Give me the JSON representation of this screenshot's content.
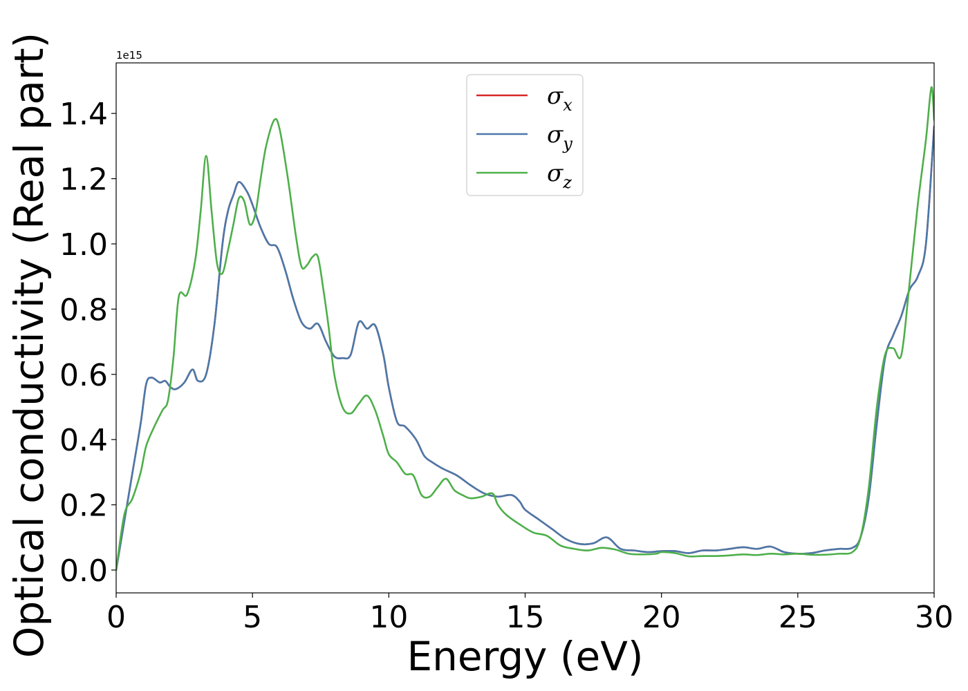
{
  "chart_data": {
    "type": "line",
    "xlabel": "Energy (eV)",
    "ylabel": "Optical conductivity (Real part)",
    "y_offset_text": "1e15",
    "xlim": [
      0,
      30
    ],
    "ylim": [
      -0.07,
      1.555
    ],
    "x_ticks": [
      0,
      5,
      10,
      15,
      20,
      25,
      30
    ],
    "x_tick_labels": [
      "0",
      "5",
      "10",
      "15",
      "20",
      "25",
      "30"
    ],
    "y_ticks": [
      0.0,
      0.2,
      0.4,
      0.6,
      0.8,
      1.0,
      1.2,
      1.4
    ],
    "y_tick_labels": [
      "0.0",
      "0.2",
      "0.4",
      "0.6",
      "0.8",
      "1.0",
      "1.2",
      "1.4"
    ],
    "grid": false,
    "legend_position": "upper center",
    "series": [
      {
        "name": "σx",
        "legend_base": "σ",
        "legend_sub": "x",
        "color": "#d62728",
        "x": [
          0,
          0.3,
          0.6,
          0.9,
          1.1,
          1.3,
          1.6,
          1.8,
          2.0,
          2.2,
          2.5,
          2.8,
          3.0,
          3.3,
          3.6,
          3.9,
          4.1,
          4.3,
          4.5,
          4.8,
          5.0,
          5.3,
          5.6,
          5.9,
          6.2,
          6.5,
          6.8,
          7.1,
          7.4,
          7.7,
          8.0,
          8.3,
          8.6,
          8.9,
          9.2,
          9.5,
          9.8,
          10.0,
          10.3,
          10.6,
          11.0,
          11.3,
          11.6,
          12.0,
          12.5,
          13.0,
          13.5,
          14.0,
          14.5,
          14.8,
          15.0,
          15.5,
          16.0,
          16.5,
          17.0,
          17.5,
          18.0,
          18.5,
          19.0,
          19.5,
          20.0,
          20.5,
          21.0,
          21.5,
          22.0,
          22.5,
          23.0,
          23.5,
          24.0,
          24.5,
          25.0,
          25.5,
          26.0,
          26.5,
          27.0,
          27.3,
          27.6,
          27.9,
          28.2,
          28.5,
          28.8,
          29.1,
          29.4,
          29.7,
          30.0
        ],
        "y": [
          0.0,
          0.15,
          0.3,
          0.45,
          0.57,
          0.59,
          0.575,
          0.58,
          0.56,
          0.555,
          0.575,
          0.615,
          0.58,
          0.6,
          0.75,
          1.0,
          1.1,
          1.15,
          1.19,
          1.16,
          1.12,
          1.05,
          1.0,
          0.99,
          0.92,
          0.83,
          0.76,
          0.74,
          0.755,
          0.7,
          0.655,
          0.65,
          0.66,
          0.76,
          0.74,
          0.75,
          0.66,
          0.56,
          0.455,
          0.44,
          0.4,
          0.35,
          0.33,
          0.31,
          0.29,
          0.26,
          0.235,
          0.225,
          0.23,
          0.21,
          0.185,
          0.155,
          0.125,
          0.095,
          0.08,
          0.082,
          0.1,
          0.065,
          0.06,
          0.055,
          0.058,
          0.058,
          0.052,
          0.06,
          0.06,
          0.065,
          0.07,
          0.065,
          0.072,
          0.055,
          0.05,
          0.052,
          0.06,
          0.065,
          0.068,
          0.1,
          0.22,
          0.45,
          0.65,
          0.72,
          0.78,
          0.86,
          0.9,
          1.0,
          1.36
        ]
      },
      {
        "name": "σy",
        "legend_base": "σ",
        "legend_sub": "y",
        "color": "#4a79aa",
        "x": [
          0,
          0.3,
          0.6,
          0.9,
          1.1,
          1.3,
          1.6,
          1.8,
          2.0,
          2.2,
          2.5,
          2.8,
          3.0,
          3.3,
          3.6,
          3.9,
          4.1,
          4.3,
          4.5,
          4.8,
          5.0,
          5.3,
          5.6,
          5.9,
          6.2,
          6.5,
          6.8,
          7.1,
          7.4,
          7.7,
          8.0,
          8.3,
          8.6,
          8.9,
          9.2,
          9.5,
          9.8,
          10.0,
          10.3,
          10.6,
          11.0,
          11.3,
          11.6,
          12.0,
          12.5,
          13.0,
          13.5,
          14.0,
          14.5,
          14.8,
          15.0,
          15.5,
          16.0,
          16.5,
          17.0,
          17.5,
          18.0,
          18.5,
          19.0,
          19.5,
          20.0,
          20.5,
          21.0,
          21.5,
          22.0,
          22.5,
          23.0,
          23.5,
          24.0,
          24.5,
          25.0,
          25.5,
          26.0,
          26.5,
          27.0,
          27.3,
          27.6,
          27.9,
          28.2,
          28.5,
          28.8,
          29.1,
          29.4,
          29.7,
          30.0
        ],
        "y": [
          0.0,
          0.15,
          0.3,
          0.45,
          0.57,
          0.59,
          0.575,
          0.58,
          0.56,
          0.555,
          0.575,
          0.615,
          0.58,
          0.6,
          0.75,
          1.0,
          1.1,
          1.15,
          1.19,
          1.16,
          1.12,
          1.05,
          1.0,
          0.99,
          0.92,
          0.83,
          0.76,
          0.74,
          0.755,
          0.7,
          0.655,
          0.65,
          0.66,
          0.76,
          0.74,
          0.75,
          0.66,
          0.56,
          0.455,
          0.44,
          0.4,
          0.35,
          0.33,
          0.31,
          0.29,
          0.26,
          0.235,
          0.225,
          0.23,
          0.21,
          0.185,
          0.155,
          0.125,
          0.095,
          0.08,
          0.082,
          0.1,
          0.065,
          0.06,
          0.055,
          0.058,
          0.058,
          0.052,
          0.06,
          0.06,
          0.065,
          0.07,
          0.065,
          0.072,
          0.055,
          0.05,
          0.052,
          0.06,
          0.065,
          0.068,
          0.1,
          0.22,
          0.45,
          0.65,
          0.72,
          0.78,
          0.86,
          0.9,
          1.0,
          1.36
        ]
      },
      {
        "name": "σz",
        "legend_base": "σ",
        "legend_sub": "z",
        "color": "#4daf4a",
        "x": [
          0,
          0.3,
          0.6,
          0.9,
          1.1,
          1.4,
          1.7,
          1.9,
          2.1,
          2.3,
          2.6,
          2.9,
          3.1,
          3.3,
          3.5,
          3.7,
          3.9,
          4.1,
          4.3,
          4.5,
          4.7,
          4.9,
          5.1,
          5.3,
          5.5,
          5.8,
          6.0,
          6.3,
          6.6,
          6.8,
          7.0,
          7.2,
          7.4,
          7.6,
          7.8,
          8.0,
          8.3,
          8.6,
          8.9,
          9.2,
          9.5,
          9.8,
          10.0,
          10.3,
          10.6,
          10.9,
          11.2,
          11.5,
          11.8,
          12.1,
          12.4,
          12.7,
          13.0,
          13.4,
          13.8,
          14.0,
          14.3,
          14.8,
          15.3,
          15.8,
          16.3,
          16.8,
          17.3,
          17.8,
          18.3,
          18.8,
          19.3,
          19.8,
          20.0,
          20.5,
          21.0,
          21.5,
          22.0,
          22.5,
          23.0,
          23.5,
          24.0,
          24.5,
          25.0,
          25.5,
          26.0,
          26.5,
          27.0,
          27.3,
          27.6,
          27.9,
          28.2,
          28.5,
          28.8,
          29.1,
          29.4,
          29.7,
          29.9,
          30.0
        ],
        "y": [
          0.0,
          0.17,
          0.22,
          0.3,
          0.38,
          0.44,
          0.49,
          0.52,
          0.65,
          0.84,
          0.845,
          0.95,
          1.1,
          1.27,
          1.1,
          0.94,
          0.91,
          0.98,
          1.06,
          1.14,
          1.13,
          1.06,
          1.09,
          1.2,
          1.3,
          1.38,
          1.35,
          1.2,
          1.02,
          0.93,
          0.935,
          0.96,
          0.96,
          0.86,
          0.74,
          0.6,
          0.5,
          0.48,
          0.51,
          0.535,
          0.49,
          0.41,
          0.355,
          0.33,
          0.295,
          0.29,
          0.23,
          0.225,
          0.255,
          0.28,
          0.245,
          0.23,
          0.22,
          0.225,
          0.235,
          0.2,
          0.17,
          0.14,
          0.115,
          0.105,
          0.075,
          0.065,
          0.06,
          0.068,
          0.063,
          0.05,
          0.048,
          0.05,
          0.055,
          0.052,
          0.042,
          0.043,
          0.043,
          0.045,
          0.048,
          0.046,
          0.05,
          0.048,
          0.05,
          0.047,
          0.047,
          0.05,
          0.055,
          0.1,
          0.25,
          0.5,
          0.66,
          0.68,
          0.66,
          0.88,
          1.12,
          1.32,
          1.48,
          1.38
        ]
      }
    ]
  }
}
